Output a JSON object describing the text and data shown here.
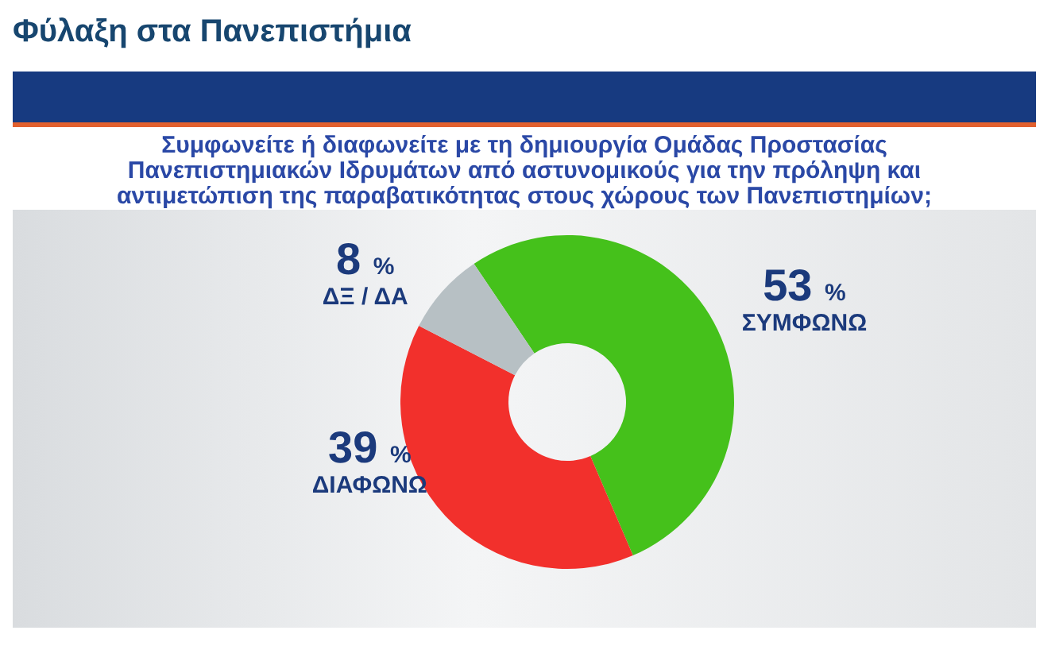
{
  "chart_data": {
    "type": "donut",
    "title": "Φύλαξη στα Πανεπιστήμια",
    "subtitle": "Συμφωνείτε ή διαφωνείτε με τη δημιουργία Ομάδας Προστασίας Πανεπιστημιακών Ιδρυμάτων από αστυνομικούς για την πρόληψη και αντιμετώπιση της παραβατικότητας στους χώρους των Πανεπιστημίων;",
    "categories": [
      "ΣΥΜΦΩΝΩ",
      "ΔΙΑΦΩΝΩ",
      "ΔΞ / ΔΑ"
    ],
    "values": [
      53,
      39,
      8
    ],
    "value_labels": [
      "53 %",
      "39 %",
      "8 %"
    ],
    "colors": [
      "#45c11b",
      "#f2302c",
      "#b7c0c4"
    ]
  }
}
